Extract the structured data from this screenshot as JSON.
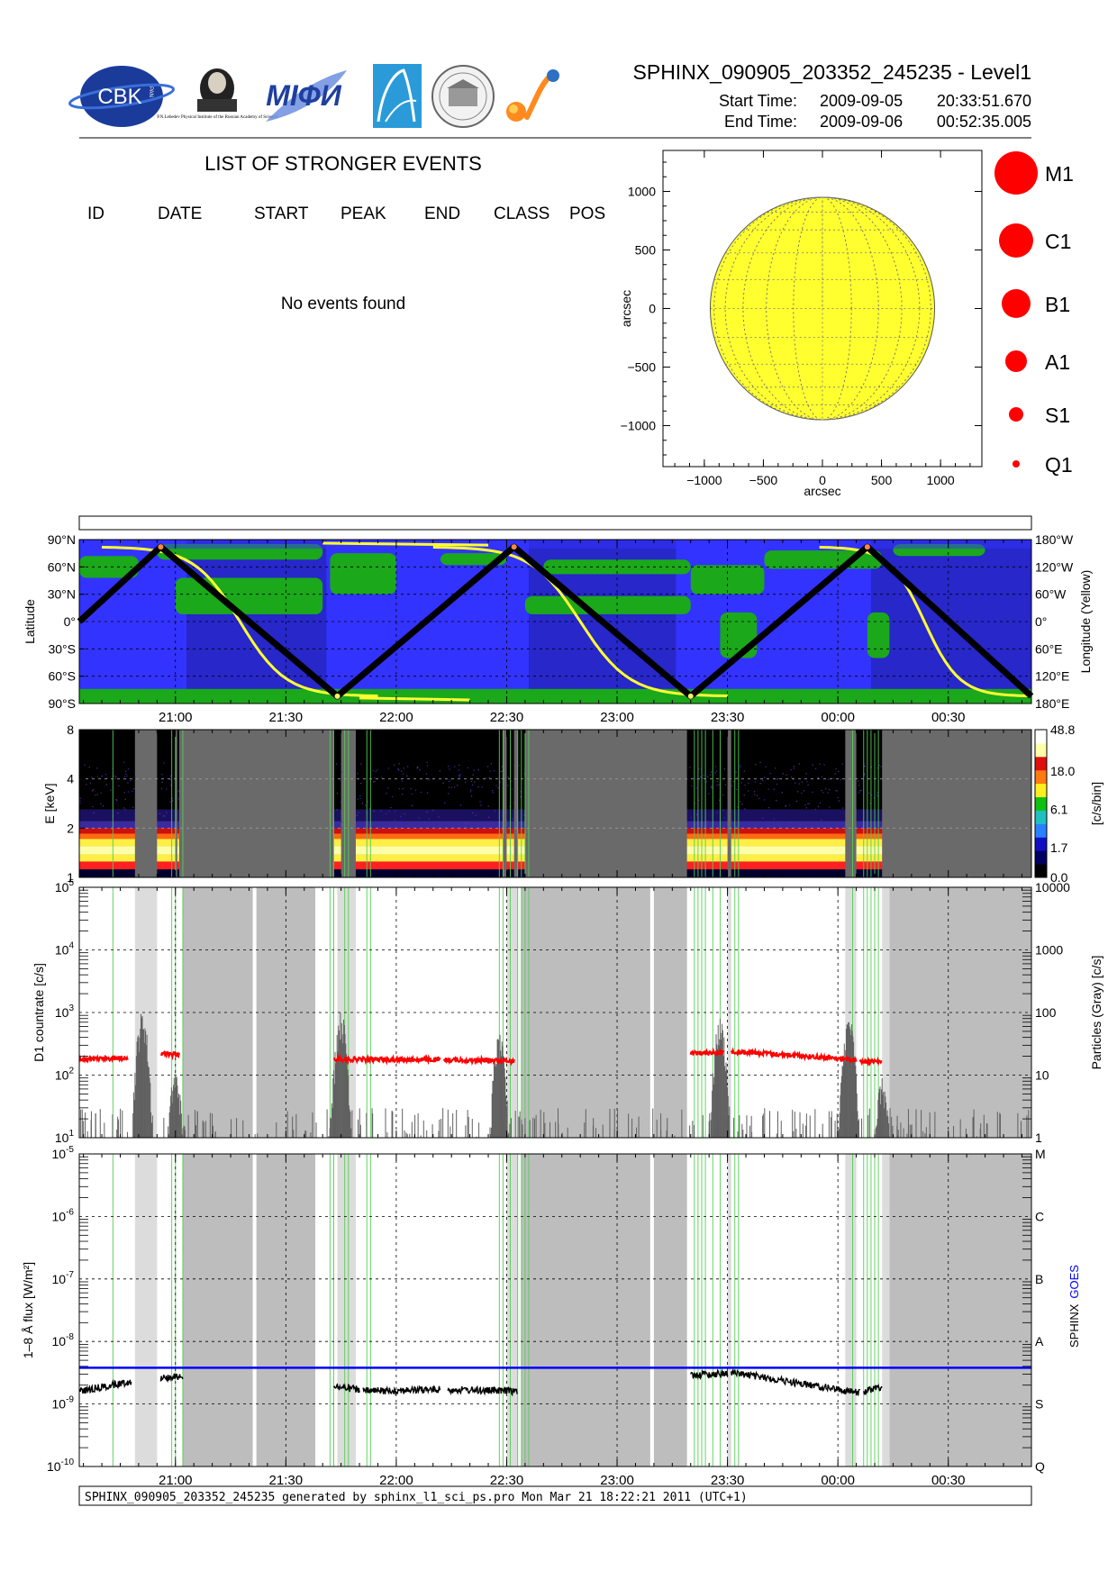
{
  "header": {
    "title": "SPHINX_090905_203352_245235 - Level1",
    "start_label": "Start Time:",
    "start_date": "2009-09-05",
    "start_time": "20:33:51.670",
    "end_label": "End Time:",
    "end_date": "2009-09-06",
    "end_time": "00:52:35.005"
  },
  "events": {
    "title": "LIST OF STRONGER EVENTS",
    "columns": [
      "ID",
      "DATE",
      "START",
      "PEAK",
      "END",
      "CLASS",
      "POS"
    ],
    "empty_text": "No events found",
    "rows": []
  },
  "logo_text": {
    "cbk": "CBK",
    "cbk_sub": "PAN",
    "lebedev": "P.N.Lebedev Physical Institute of the Russian Academy of Science",
    "mifi": "MIФИ"
  },
  "footer": {
    "text": "SPHINX_090905_203352_245235 generated by sphinx_l1_sci_ps.pro Mon Mar 21 18:22:21 2011 (UTC+1)"
  },
  "colors": {
    "sun": "#ffff30",
    "event_dot": "#ff0000",
    "ocean": "#3333ff",
    "land": "#1ba81b",
    "sphinx_line": "#000000",
    "goes_line": "#0000ff",
    "countrate": "#ff0000",
    "particles": "#606060",
    "saa_shade": "#bdbdbd",
    "gap_shade": "#dcdcdc"
  },
  "chart_data": [
    {
      "type": "scatter",
      "panel": "solar-disk",
      "xlabel": "arcsec",
      "ylabel": "arcsec",
      "xlim": [
        -1350,
        1350
      ],
      "ylim": [
        -1350,
        1350
      ],
      "xticks": [
        -1000,
        -500,
        0,
        500,
        1000
      ],
      "yticks": [
        -1000,
        -500,
        0,
        500,
        1000
      ],
      "xticklabels": [
        "−1000",
        "−500",
        "0",
        "500",
        "1000"
      ],
      "yticklabels": [
        "−1000",
        "−500",
        "0",
        "500",
        "1000"
      ],
      "sun_radius": 950,
      "grid": true,
      "points": [],
      "legend": [
        {
          "label": "M1",
          "class": "M"
        },
        {
          "label": "C1",
          "class": "C"
        },
        {
          "label": "B1",
          "class": "B"
        },
        {
          "label": "A1",
          "class": "A"
        },
        {
          "label": "S1",
          "class": "S"
        },
        {
          "label": "Q1",
          "class": "Q"
        }
      ]
    },
    {
      "type": "line",
      "panel": "orbit-map",
      "ylabel": "Latitude",
      "y2label": "Longitude (Yellow)",
      "yticks": [
        "90°N",
        "60°N",
        "30°N",
        "0°",
        "30°S",
        "60°S",
        "90°S"
      ],
      "y2ticks": [
        "180°W",
        "120°W",
        "60°W",
        "0°",
        "60°E",
        "120°E",
        "180°E"
      ],
      "xlim": [
        "20:33:52",
        "00:52:35"
      ],
      "xticks": [
        "21:00",
        "21:30",
        "22:00",
        "22:30",
        "23:00",
        "23:30",
        "00:00",
        "00:30"
      ],
      "latitude_track": {
        "x": [
          "20:33:52",
          "20:56",
          "21:44",
          "22:32",
          "23:20",
          "00:08",
          "00:52:35"
        ],
        "y": [
          0,
          82,
          -82,
          82,
          -82,
          82,
          -82
        ]
      }
    },
    {
      "type": "heatmap",
      "panel": "spectrogram",
      "ylabel": "E [keV]",
      "yticks": [
        "1",
        "2",
        "4",
        "8"
      ],
      "colorbar_label": "[c/s/bin]",
      "colorbar_ticks": [
        "0.0",
        "1.7",
        "6.1",
        "18.0",
        "48.8"
      ],
      "xlim": [
        "20:33:52",
        "00:52:35"
      ],
      "xticks": [
        "21:00",
        "21:30",
        "22:00",
        "22:30",
        "23:00",
        "23:30",
        "00:00",
        "00:30"
      ]
    },
    {
      "type": "line",
      "panel": "countrate",
      "ylabel": "D1 countrate [c/s]",
      "y2label": "Particles (Gray) [c/s]",
      "yscale": "log",
      "ylim": [
        10,
        100000
      ],
      "yticks": [
        "10^1",
        "10^2",
        "10^3",
        "10^4",
        "10^5"
      ],
      "y2ticks": [
        "1",
        "10",
        "100",
        "1000",
        "10000"
      ],
      "xlim": [
        "20:33:52",
        "00:52:35"
      ],
      "xticks": [
        "21:00",
        "21:30",
        "22:00",
        "22:30",
        "23:00",
        "23:30",
        "00:00",
        "00:30"
      ],
      "series": [
        {
          "name": "D1 countrate",
          "segments": [
            {
              "x": [
                "20:34",
                "20:47"
              ],
              "y": [
                175,
                190
              ]
            },
            {
              "x": [
                "20:56",
                "21:01"
              ],
              "y": [
                220,
                210
              ]
            },
            {
              "x": [
                "21:43",
                "22:12"
              ],
              "y": [
                180,
                175
              ]
            },
            {
              "x": [
                "22:13",
                "22:32"
              ],
              "y": [
                175,
                170
              ]
            },
            {
              "x": [
                "23:20",
                "23:29"
              ],
              "y": [
                225,
                230
              ]
            },
            {
              "x": [
                "23:31",
                "00:05"
              ],
              "y": [
                240,
                175
              ]
            },
            {
              "x": [
                "00:06",
                "00:12"
              ],
              "y": [
                165,
                165
              ]
            }
          ]
        },
        {
          "name": "Particles",
          "peaks": [
            {
              "x": "20:51",
              "y": 70
            },
            {
              "x": "21:00",
              "y": 8
            },
            {
              "x": "21:45",
              "y": 70
            },
            {
              "x": "22:28",
              "y": 30
            },
            {
              "x": "23:28",
              "y": 55
            },
            {
              "x": "00:03",
              "y": 60
            },
            {
              "x": "00:12",
              "y": 6
            }
          ]
        }
      ]
    },
    {
      "type": "line",
      "panel": "flux",
      "ylabel": "1–8 Å flux [W/m²]",
      "yscale": "log",
      "ylim": [
        1e-10,
        1e-05
      ],
      "yticks": [
        "10^-10",
        "10^-9",
        "10^-8",
        "10^-7",
        "10^-6",
        "10^-5"
      ],
      "classes": [
        "Q",
        "S",
        "A",
        "B",
        "C",
        "M"
      ],
      "xlim": [
        "20:33:52",
        "00:52:35"
      ],
      "xticks": [
        "21:00",
        "21:30",
        "22:00",
        "22:30",
        "23:00",
        "23:30",
        "00:00",
        "00:30"
      ],
      "legend": [
        "SPHINX",
        "GOES"
      ],
      "series": [
        {
          "name": "SPHINX",
          "segments": [
            {
              "x": [
                "20:34",
                "20:48"
              ],
              "y": [
                1.6e-09,
                2.3e-09
              ]
            },
            {
              "x": [
                "20:56",
                "21:02"
              ],
              "y": [
                2.6e-09,
                2.8e-09
              ]
            },
            {
              "x": [
                "21:43",
                "21:50"
              ],
              "y": [
                1.9e-09,
                1.7e-09
              ]
            },
            {
              "x": [
                "21:51",
                "22:12"
              ],
              "y": [
                1.6e-09,
                1.7e-09
              ]
            },
            {
              "x": [
                "22:14",
                "22:33"
              ],
              "y": [
                1.7e-09,
                1.6e-09
              ]
            },
            {
              "x": [
                "23:20",
                "23:30"
              ],
              "y": [
                2.9e-09,
                3.1e-09
              ]
            },
            {
              "x": [
                "23:31",
                "00:06"
              ],
              "y": [
                3.2e-09,
                1.5e-09
              ]
            },
            {
              "x": [
                "00:07",
                "00:12"
              ],
              "y": [
                1.6e-09,
                1.9e-09
              ]
            }
          ]
        },
        {
          "name": "GOES",
          "segments": [
            {
              "x": [
                "20:33:52",
                "00:52:35"
              ],
              "y": [
                3.8e-09,
                3.8e-09
              ]
            }
          ]
        }
      ]
    }
  ],
  "shading": {
    "saa": [
      [
        "21:02",
        "21:21"
      ],
      [
        "21:22",
        "21:38"
      ],
      [
        "22:34",
        "23:09"
      ],
      [
        "23:10",
        "23:19"
      ],
      [
        "00:14",
        "00:52:35"
      ]
    ],
    "gaps": [
      [
        "20:49",
        "20:55"
      ],
      [
        "21:44",
        "21:49"
      ],
      [
        "22:30",
        "22:33"
      ],
      [
        "23:30",
        "23:31"
      ],
      [
        "00:02",
        "00:05"
      ],
      [
        "00:12",
        "00:14"
      ]
    ],
    "night": [
      [
        "21:03",
        "21:41"
      ],
      [
        "22:36",
        "23:16"
      ],
      [
        "00:09",
        "00:52:35"
      ]
    ]
  }
}
